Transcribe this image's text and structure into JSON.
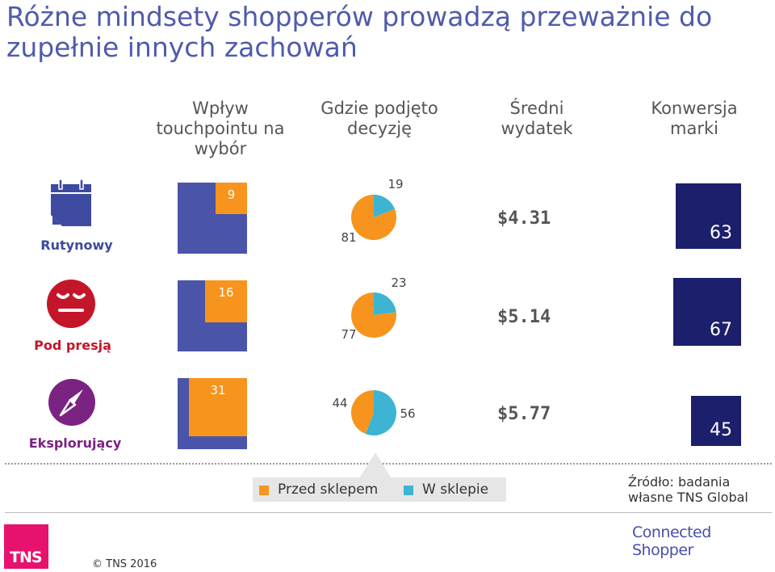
{
  "title": "Różne mindsety shopperów prowadzą przeważnie do zupełnie innych zachowań",
  "columns": [
    "Wpływ touchpointu na wybór",
    "Gdzie podjęto decyzję",
    "Średni wydatek",
    "Konwersja marki"
  ],
  "segments": [
    {
      "label": "Rutynowy",
      "color": "#3d4aa0",
      "icon": "calendar-icon"
    },
    {
      "label": "Pod presją",
      "color": "#c4162a",
      "icon": "neutral-face-icon"
    },
    {
      "label": "Eksplorujący",
      "color": "#7b2383",
      "icon": "compass-icon"
    }
  ],
  "legend": {
    "before": "Przed sklepem",
    "inside": "W sklepie"
  },
  "source": "Źródło: badania własne TNS Global",
  "brand": "Connected Shopper",
  "logo": "TNS",
  "copyright": "© TNS 2016",
  "colors": {
    "blue": "#4a55a9",
    "orange": "#f7941d",
    "cyan": "#3cb4d2",
    "navy": "#1b1f6c",
    "title": "#4f5bab",
    "tns_magenta": "#e6126d"
  },
  "chart_data": [
    {
      "type": "bar",
      "title": "Wpływ touchpointu na wybór",
      "categories": [
        "Rutynowy",
        "Pod presją",
        "Eksplorujący"
      ],
      "values": [
        9,
        16,
        31
      ]
    },
    {
      "type": "pie",
      "title": "Gdzie podjęto decyzję",
      "categories": [
        "Rutynowy",
        "Pod presją",
        "Eksplorujący"
      ],
      "series": [
        {
          "name": "Przed sklepem",
          "values": [
            81,
            77,
            44
          ]
        },
        {
          "name": "W sklepie",
          "values": [
            19,
            23,
            56
          ]
        }
      ]
    },
    {
      "type": "table",
      "title": "Średni wydatek",
      "categories": [
        "Rutynowy",
        "Pod presją",
        "Eksplorujący"
      ],
      "values": [
        "$4.31",
        "$5.14",
        "$5.77"
      ]
    },
    {
      "type": "bar",
      "title": "Konwersja marki",
      "categories": [
        "Rutynowy",
        "Pod presją",
        "Eksplorujący"
      ],
      "values": [
        63,
        67,
        45
      ]
    }
  ]
}
